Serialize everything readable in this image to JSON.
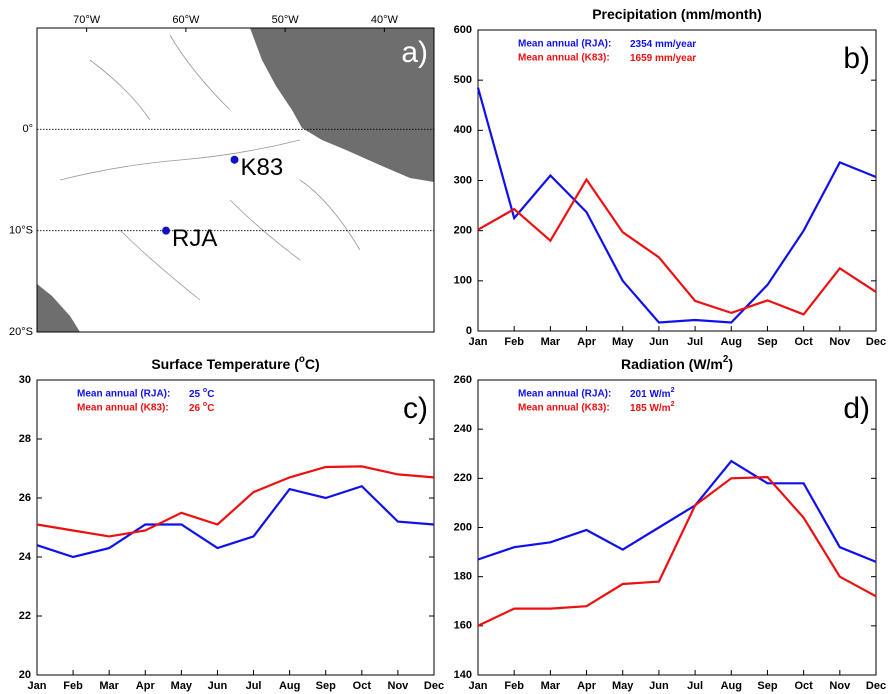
{
  "chart_data": [
    {
      "type": "map",
      "panel_label": "a)",
      "xlim": [
        -75,
        -35
      ],
      "ylim": [
        -20,
        10
      ],
      "xticks": [
        {
          "value": -70,
          "label": "70°W"
        },
        {
          "value": -60,
          "label": "60°W"
        },
        {
          "value": -50,
          "label": "50°W"
        },
        {
          "value": -40,
          "label": "40°W"
        }
      ],
      "yticks": [
        {
          "value": 0,
          "label": "0°"
        },
        {
          "value": -10,
          "label": "10°S"
        },
        {
          "value": -20,
          "label": "20°S"
        }
      ],
      "points": [
        {
          "name": "K83",
          "x": -55.1,
          "y": -3.0,
          "color": "#1010c8"
        },
        {
          "name": "RJA",
          "x": -62.0,
          "y": -10.0,
          "color": "#1010c8"
        }
      ]
    },
    {
      "type": "line",
      "title": [
        "Precipitation (mm/month)"
      ],
      "panel_label": "b)",
      "categories": [
        "Jan",
        "Feb",
        "Mar",
        "Apr",
        "May",
        "Jun",
        "Jul",
        "Aug",
        "Sep",
        "Oct",
        "Nov",
        "Dec"
      ],
      "ylim": [
        0,
        600
      ],
      "yticks": [
        0,
        100,
        200,
        300,
        400,
        500,
        600
      ],
      "series": [
        {
          "name": "Mean annual (RJA):",
          "mean_label": [
            "2354 mm/year"
          ],
          "color": "#1010ee",
          "values": [
            485,
            225,
            310,
            237,
            100,
            17,
            22,
            17,
            92,
            200,
            336,
            307
          ]
        },
        {
          "name": "Mean annual (K83):",
          "mean_label": [
            "1659 mm/year"
          ],
          "color": "#ee1010",
          "values": [
            202,
            243,
            180,
            302,
            197,
            147,
            60,
            36,
            61,
            33,
            125,
            78
          ]
        }
      ]
    },
    {
      "type": "line",
      "title": [
        "Surface Temperature (",
        "o",
        "C)"
      ],
      "panel_label": "c)",
      "categories": [
        "Jan",
        "Feb",
        "Mar",
        "Apr",
        "May",
        "Jun",
        "Jul",
        "Aug",
        "Sep",
        "Oct",
        "Nov",
        "Dec"
      ],
      "ylim": [
        20,
        30
      ],
      "yticks": [
        20,
        22,
        24,
        26,
        28,
        30
      ],
      "series": [
        {
          "name": "Mean annual (RJA):",
          "mean_label": [
            "25 ",
            "o",
            "C"
          ],
          "color": "#1010ee",
          "values": [
            24.4,
            24.0,
            24.3,
            25.1,
            25.1,
            24.3,
            24.7,
            26.3,
            26.0,
            26.4,
            25.2,
            25.1
          ]
        },
        {
          "name": "Mean annual (K83):",
          "mean_label": [
            "26 ",
            "o",
            "C"
          ],
          "color": "#ee1010",
          "values": [
            25.1,
            24.9,
            24.7,
            24.9,
            25.5,
            25.1,
            26.2,
            26.7,
            27.05,
            27.07,
            26.8,
            26.7
          ]
        }
      ]
    },
    {
      "type": "line",
      "title": [
        "Radiation (W/m",
        "2",
        ")"
      ],
      "panel_label": "d)",
      "categories": [
        "Jan",
        "Feb",
        "Mar",
        "Apr",
        "May",
        "Jun",
        "Jul",
        "Aug",
        "Sep",
        "Oct",
        "Nov",
        "Dec"
      ],
      "ylim": [
        140,
        260
      ],
      "yticks": [
        140,
        160,
        180,
        200,
        220,
        240,
        260
      ],
      "series": [
        {
          "name": "Mean annual (RJA):",
          "mean_label": [
            "201 W/m",
            "2"
          ],
          "color": "#1010ee",
          "values": [
            187,
            192,
            194,
            199,
            191,
            200,
            209,
            227,
            218,
            218,
            192,
            186
          ]
        },
        {
          "name": "Mean annual (K83):",
          "mean_label": [
            "185 W/m",
            "2"
          ],
          "color": "#ee1010",
          "values": [
            160,
            167,
            167,
            168,
            177,
            178,
            209,
            220,
            220.5,
            204,
            180,
            172
          ]
        }
      ]
    }
  ]
}
